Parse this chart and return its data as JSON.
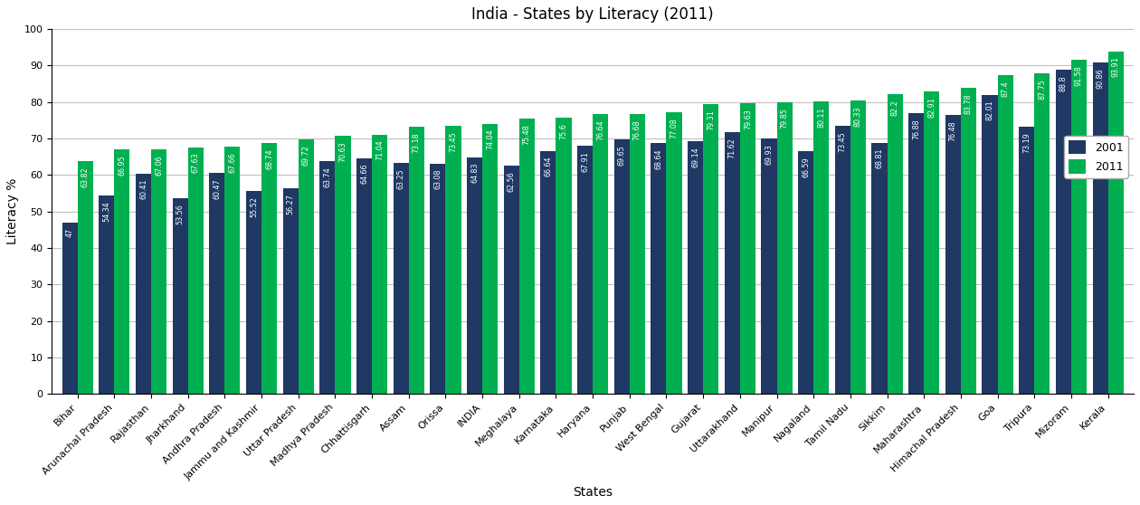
{
  "title": "India - States by Literacy (2011)",
  "xlabel": "States",
  "ylabel": "Literacy %",
  "ylim": [
    0,
    100
  ],
  "yticks": [
    0,
    10,
    20,
    30,
    40,
    50,
    60,
    70,
    80,
    90,
    100
  ],
  "states": [
    "Bihar",
    "Arunachal Pradesh",
    "Rajasthan",
    "Jharkhand",
    "Andhra Pradesh",
    "Jammu and Kashmir",
    "Uttar Pradesh",
    "Madhya Pradesh",
    "Chhattisgarh",
    "Assam",
    "Orissa",
    "INDIA",
    "Meghalaya",
    "Karnataka",
    "Haryana",
    "Punjab",
    "West Bengal",
    "Gujarat",
    "Uttarakhand",
    "Manipur",
    "Nagaland",
    "Tamil Nadu",
    "Sikkim",
    "Maharashtra",
    "Himachal Pradesh",
    "Goa",
    "Tripura",
    "Mizoram",
    "Kerala"
  ],
  "values_2001": [
    47,
    54.34,
    60.41,
    53.56,
    60.47,
    55.52,
    56.27,
    63.74,
    64.66,
    63.25,
    63.08,
    64.83,
    62.56,
    66.64,
    67.91,
    69.65,
    68.64,
    69.14,
    71.62,
    69.93,
    66.59,
    73.45,
    68.81,
    76.88,
    76.48,
    82.01,
    73.19,
    88.8,
    90.86
  ],
  "values_2011": [
    63.82,
    66.95,
    67.06,
    67.63,
    67.66,
    68.74,
    69.72,
    70.63,
    71.04,
    73.18,
    73.45,
    74.04,
    75.48,
    75.6,
    76.64,
    76.68,
    77.08,
    79.31,
    79.63,
    79.85,
    80.11,
    80.33,
    82.2,
    82.91,
    83.78,
    87.4,
    87.75,
    91.58,
    93.91
  ],
  "color_2001": "#1f3864",
  "color_2011": "#00b050",
  "bar_width": 0.42,
  "background_color": "#ffffff",
  "grid_color": "#c0c0c0",
  "title_fontsize": 12,
  "label_fontsize": 10,
  "tick_fontsize": 8,
  "value_fontsize": 5.8,
  "legend_labels": [
    "2001",
    "2011"
  ],
  "legend_loc": "center right"
}
